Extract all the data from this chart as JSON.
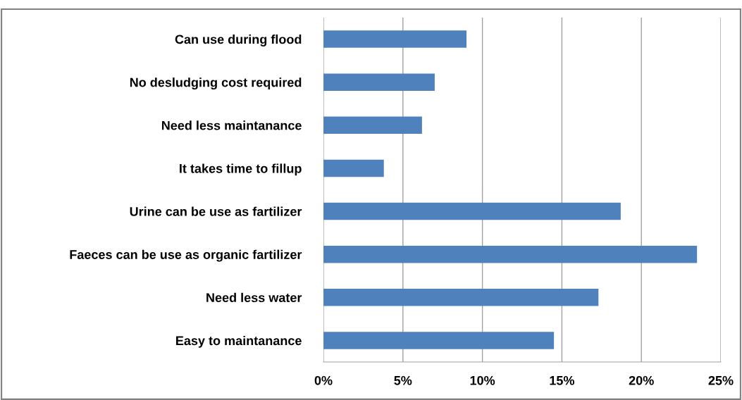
{
  "chart_data": {
    "type": "bar",
    "orientation": "horizontal",
    "categories": [
      "Can use during flood",
      "No desludging cost required",
      "Need less maintanance",
      "It takes time to fillup",
      "Urine can be use as fartilizer",
      "Faeces can be use as organic fartilizer",
      "Need less water",
      "Easy to maintanance"
    ],
    "values": [
      9.0,
      7.0,
      6.2,
      3.8,
      18.7,
      23.5,
      17.3,
      14.5
    ],
    "color": "#4f81bd",
    "xlim": [
      0,
      25
    ],
    "xticks": [
      {
        "value": 0,
        "label": "0%"
      },
      {
        "value": 5,
        "label": "5%"
      },
      {
        "value": 10,
        "label": "10%"
      },
      {
        "value": 15,
        "label": "15%"
      },
      {
        "value": 20,
        "label": "20%"
      },
      {
        "value": 25,
        "label": "25%"
      }
    ],
    "grid": "x",
    "legend": false
  }
}
